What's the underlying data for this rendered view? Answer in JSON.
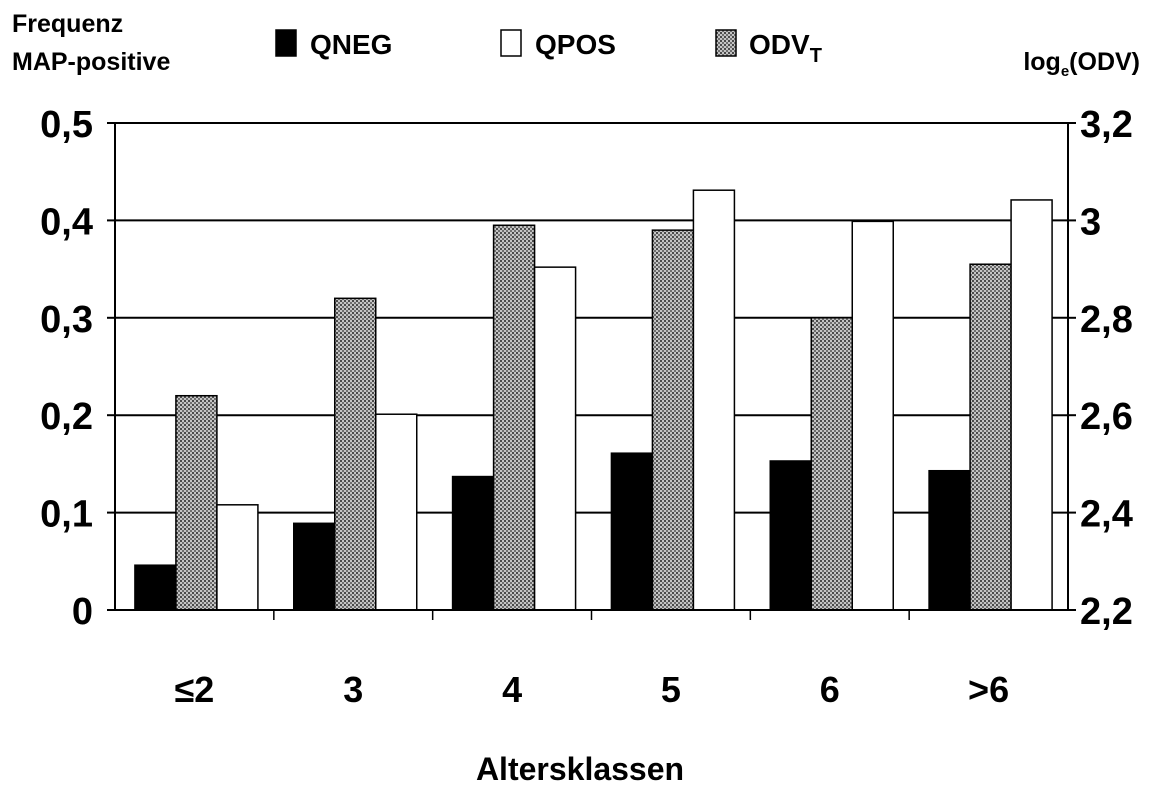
{
  "chart_data": {
    "type": "bar",
    "title": "",
    "xlabel": "Altersklassen",
    "ylabel_left_line1": "Frequenz",
    "ylabel_left_line2": "MAP-positive",
    "ylabel_right_base": "log",
    "ylabel_right_sub": "e",
    "ylabel_right_rest": "(ODV)",
    "categories": [
      "≤2",
      "3",
      "4",
      "5",
      "6",
      ">6"
    ],
    "series": [
      {
        "name": "QNEG",
        "axis": "left",
        "color": "#000000",
        "values": [
          0.046,
          0.089,
          0.137,
          0.161,
          0.153,
          0.143
        ]
      },
      {
        "name": "ODV",
        "name_sub": "T",
        "axis": "right",
        "color": "#9a9a9a",
        "pattern": "dotted-gray",
        "values": [
          2.64,
          2.84,
          2.99,
          2.98,
          2.8,
          2.91
        ]
      },
      {
        "name": "QPOS",
        "axis": "left",
        "color": "#ffffff",
        "values": [
          0.108,
          0.201,
          0.352,
          0.431,
          0.399,
          0.421
        ]
      }
    ],
    "y_left": {
      "min": 0,
      "max": 0.5,
      "ticks": [
        "0",
        "0,1",
        "0,2",
        "0,3",
        "0,4",
        "0,5"
      ]
    },
    "y_right": {
      "min": 2.2,
      "max": 3.2,
      "ticks": [
        "2,2",
        "2,4",
        "2,6",
        "2,8",
        "3",
        "3,2"
      ]
    },
    "grid": true,
    "legend": {
      "placement": "top",
      "items": [
        {
          "label": "QNEG",
          "series": 0
        },
        {
          "label": "QPOS",
          "series": 2
        },
        {
          "label": "ODV",
          "sub": "T",
          "series": 1
        }
      ]
    }
  }
}
